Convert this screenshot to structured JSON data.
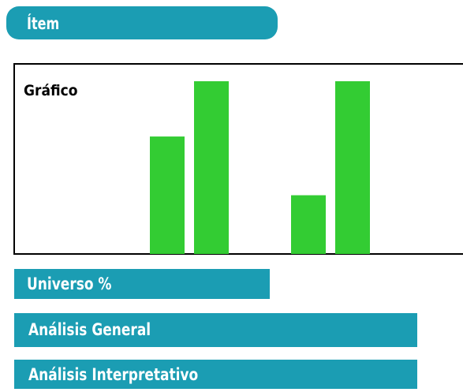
{
  "header": {
    "title": "Ítem"
  },
  "chart_data": {
    "type": "bar",
    "title": "Gráfico",
    "categories": [
      null,
      null
    ],
    "series": [
      {
        "color": "#33cc33",
        "values": [
          68,
          34
        ]
      },
      {
        "color": "#33cc33",
        "values": [
          100,
          100
        ]
      }
    ],
    "ylim": [
      0,
      100
    ]
  },
  "sections": [
    "Universo %",
    "Análisis General",
    "Análisis Interpretativo"
  ]
}
